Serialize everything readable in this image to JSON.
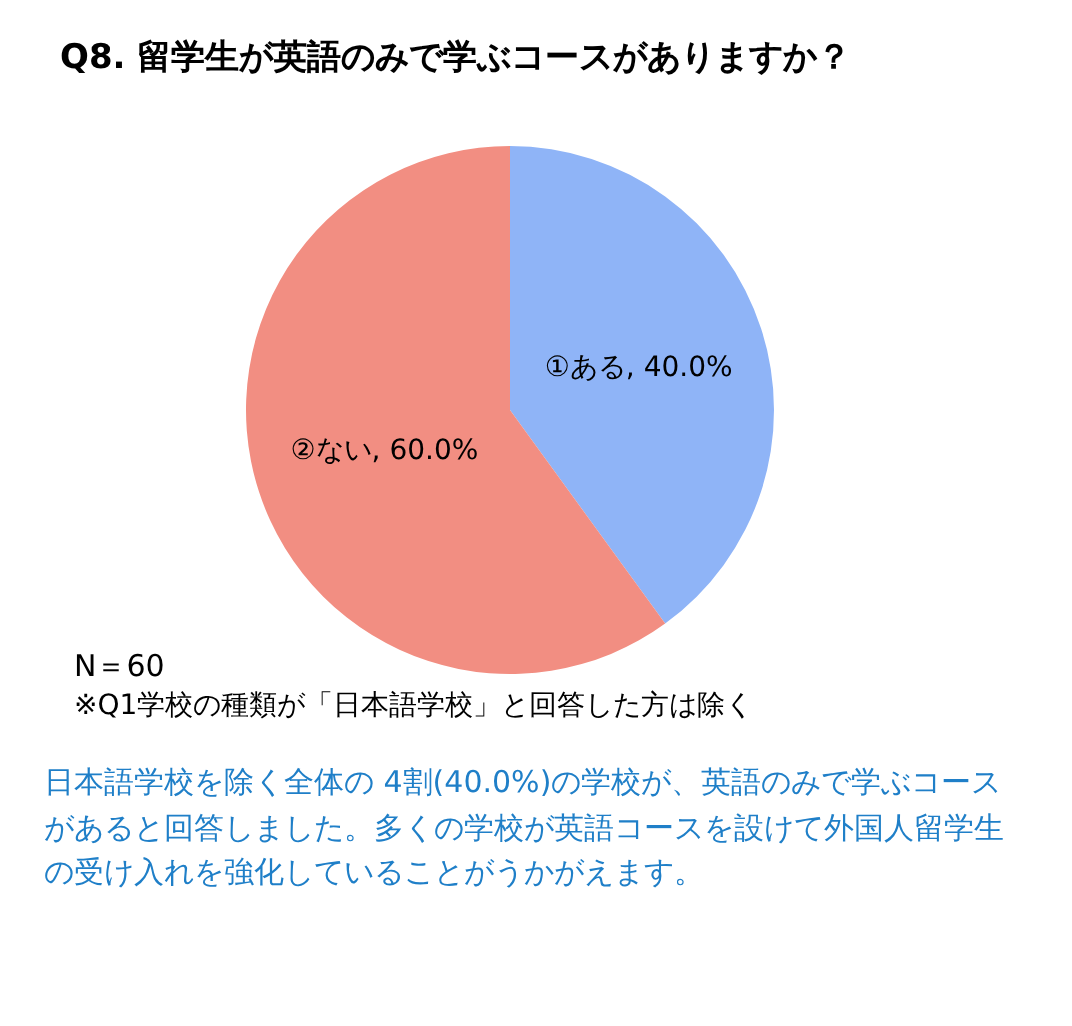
{
  "chart_data": {
    "type": "pie",
    "title": "Q8. 留学生が英語のみで学ぶコースがありますか？",
    "categories": [
      "①ある",
      "②ない"
    ],
    "values": [
      40.0,
      60.0
    ],
    "value_labels": [
      "40.0%",
      "60.0%"
    ],
    "colors": [
      "#8fb4f7",
      "#f28e82"
    ],
    "legend": false,
    "annotations": [
      "N＝60",
      "※Q1学校の種類が「日本語学校」と回答した方は除く",
      "日本語学校を除く全体の  4割(40.0%)の学校が、英語のみで学ぶコースがあると回答しました。多くの学校が英語コースを設けて外国人留学生の受け入れを強化していることがうかがえます。"
    ]
  }
}
